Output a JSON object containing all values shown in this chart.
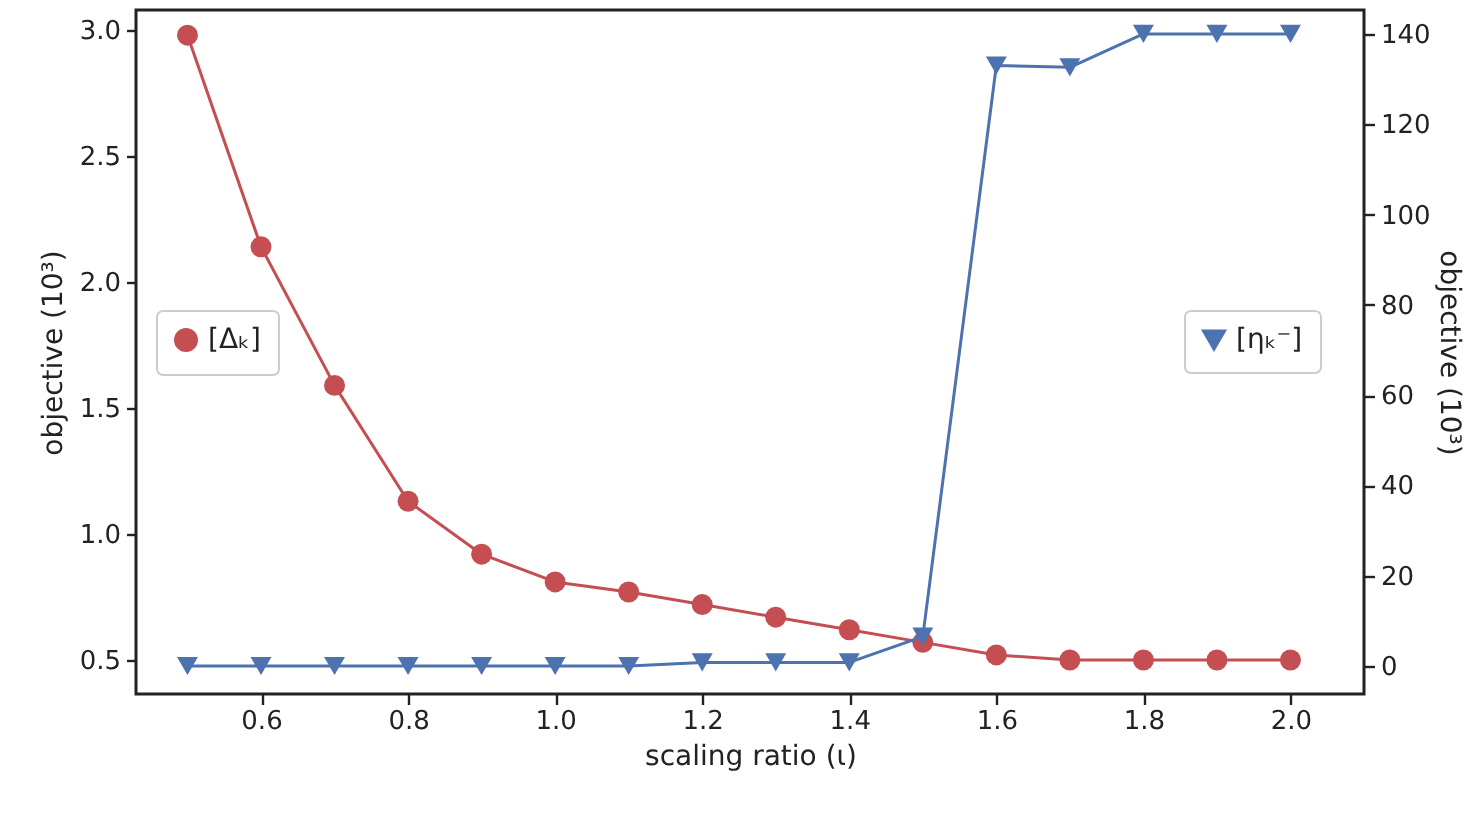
{
  "chart_data": {
    "type": "line",
    "xlabel": "scaling ratio (ι)",
    "ylabel": "objective (10³)",
    "y2label": "objective (10³)",
    "x": [
      0.5,
      0.6,
      0.7,
      0.8,
      0.9,
      1.0,
      1.1,
      1.2,
      1.3,
      1.4,
      1.5,
      1.6,
      1.7,
      1.8,
      1.9,
      2.0
    ],
    "series": [
      {
        "name": "[Δₖ]",
        "color": "#c44e52",
        "marker": "circle",
        "values": [
          2.98,
          2.14,
          1.59,
          1.13,
          0.92,
          0.81,
          0.77,
          0.72,
          0.67,
          0.62,
          0.57,
          0.52,
          0.5,
          0.5,
          0.5,
          0.5
        ]
      },
      {
        "name": "[ηₖ⁻]",
        "color": "#4c72b0",
        "marker": "triangle-down",
        "axis": "y2",
        "values": [
          0,
          0,
          0,
          0,
          0,
          0,
          0,
          0.8,
          0.8,
          0.8,
          6.5,
          133,
          132.6,
          140,
          140,
          140
        ]
      }
    ],
    "xlim": [
      0.43,
      2.1
    ],
    "xticks": [
      0.6,
      0.8,
      {
        "value": 1,
        "label": "1.0"
      },
      1.2,
      1.4,
      1.6,
      1.8,
      {
        "value": 2,
        "label": "2.0"
      }
    ],
    "ylim": [
      0.365,
      3.08
    ],
    "yticks": [
      0.5,
      {
        "value": 1,
        "label": "1.0"
      },
      1.5,
      {
        "value": 2,
        "label": "2.0"
      },
      2.5,
      {
        "value": 3,
        "label": "3.0"
      }
    ],
    "y2lim": [
      -6.2,
      145.3
    ],
    "y2ticks": [
      0,
      20,
      40,
      60,
      80,
      100,
      120,
      140
    ],
    "grid": false,
    "legend": "left",
    "line_style": "solid"
  }
}
